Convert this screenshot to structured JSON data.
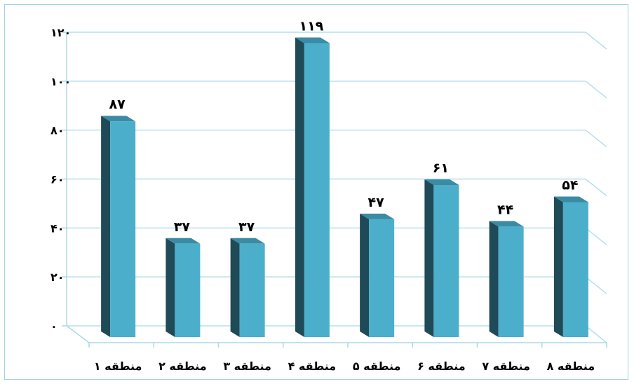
{
  "chart_data": {
    "type": "bar",
    "categories": [
      "منطقه ۱",
      "منطقه ۲",
      "منطقه ۳",
      "منطقه ۴",
      "منطقه ۵",
      "منطقه ۶",
      "منطقه ۷",
      "منطقه ۸"
    ],
    "values": [
      87,
      37,
      37,
      119,
      47,
      61,
      44,
      54
    ],
    "value_labels": [
      "۸۷",
      "۳۷",
      "۳۷",
      "۱۱۹",
      "۴۷",
      "۶۱",
      "۴۴",
      "۵۴"
    ],
    "y_ticks": [
      0,
      20,
      40,
      60,
      80,
      100,
      120
    ],
    "y_tick_labels": [
      "۰",
      "۲۰",
      "۴۰",
      "۶۰",
      "۸۰",
      "۱۰۰",
      "۱۲۰"
    ],
    "ylim": [
      0,
      120
    ],
    "grid": true,
    "style": "3d-columns",
    "colors": {
      "bar_front": "#4bafcb",
      "bar_side": "#1f4a57",
      "bar_top": "#3a8ba3",
      "gridline": "#b7dfea",
      "axis": "#a9d8e8",
      "frame": "#9fd3e6"
    }
  }
}
